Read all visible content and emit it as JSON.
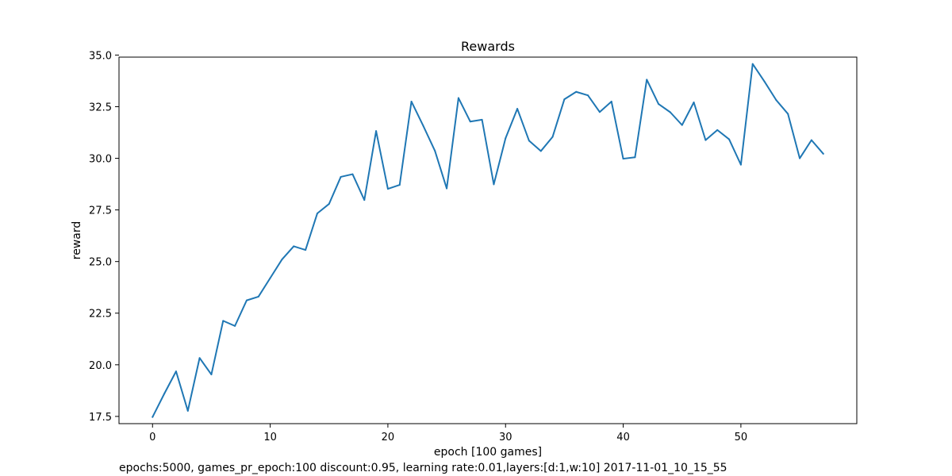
{
  "chart_data": {
    "type": "line",
    "title": "Rewards",
    "xlabel": "epoch [100 games]",
    "ylabel": "reward",
    "footnote": "epochs:5000, games_pr_epoch:100 discount:0.95, learning rate:0.01,layers:[d:1,w:10] 2017-11-01_10_15_55",
    "xlim": [
      -2.85,
      59.85
    ],
    "ylim": [
      17.15,
      34.9
    ],
    "xticks": [
      0,
      10,
      20,
      30,
      40,
      50
    ],
    "xtick_labels": [
      "0",
      "10",
      "20",
      "30",
      "40",
      "50"
    ],
    "yticks": [
      17.5,
      20.0,
      22.5,
      25.0,
      27.5,
      30.0,
      32.5,
      35.0
    ],
    "ytick_labels": [
      "17.5",
      "20.0",
      "22.5",
      "25.0",
      "27.5",
      "30.0",
      "32.5",
      "35.0"
    ],
    "grid": false,
    "line_color": "#1f77b4",
    "series": [
      {
        "x": [
          0,
          1,
          2,
          3,
          4,
          5,
          6,
          7,
          8,
          9,
          10,
          11,
          12,
          13,
          14,
          15,
          16,
          17,
          18,
          19,
          20,
          21,
          22,
          23,
          24,
          25,
          26,
          27,
          28,
          29,
          30,
          31,
          32,
          33,
          34,
          35,
          36,
          37,
          38,
          39,
          40,
          41,
          42,
          43,
          44,
          45,
          46,
          47,
          48,
          49,
          50,
          51,
          52,
          53,
          54,
          55,
          56,
          57
        ],
        "values": [
          17.47,
          18.6,
          19.68,
          17.77,
          20.33,
          19.53,
          22.13,
          21.88,
          23.12,
          23.3,
          24.2,
          25.1,
          25.74,
          25.56,
          27.33,
          27.79,
          29.1,
          29.23,
          27.98,
          31.32,
          28.52,
          28.71,
          32.75,
          31.58,
          30.36,
          28.54,
          32.92,
          31.78,
          31.87,
          28.74,
          30.97,
          32.4,
          30.85,
          30.35,
          31.04,
          32.86,
          33.22,
          33.05,
          32.24,
          32.75,
          29.98,
          30.05,
          33.81,
          32.63,
          32.23,
          31.61,
          32.71,
          30.88,
          31.37,
          30.92,
          29.69,
          34.57,
          33.72,
          32.82,
          32.15,
          30.0,
          30.88,
          30.22
        ]
      }
    ]
  }
}
